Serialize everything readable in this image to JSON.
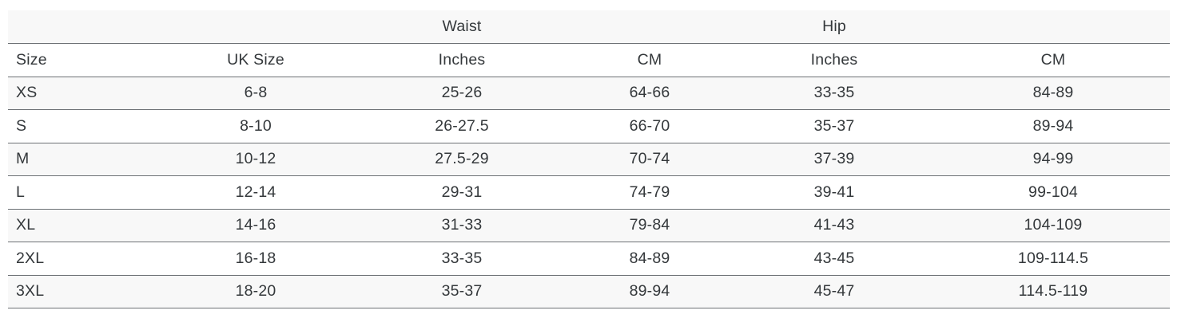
{
  "colors": {
    "stripe_row": "#f8f8f8",
    "row_border": "#6d7175",
    "text": "#34383b",
    "background": "#ffffff"
  },
  "table": {
    "group_header": {
      "waist": "Waist",
      "hip": "Hip"
    },
    "columns": [
      "Size",
      "UK Size",
      "Inches",
      "CM",
      "Inches",
      "CM"
    ],
    "rows": [
      {
        "size": "XS",
        "uk": "6-8",
        "waist_in": "25-26",
        "waist_cm": "64-66",
        "hip_in": "33-35",
        "hip_cm": "84-89"
      },
      {
        "size": "S",
        "uk": "8-10",
        "waist_in": "26-27.5",
        "waist_cm": "66-70",
        "hip_in": "35-37",
        "hip_cm": "89-94"
      },
      {
        "size": "M",
        "uk": "10-12",
        "waist_in": "27.5-29",
        "waist_cm": "70-74",
        "hip_in": "37-39",
        "hip_cm": "94-99"
      },
      {
        "size": "L",
        "uk": "12-14",
        "waist_in": "29-31",
        "waist_cm": "74-79",
        "hip_in": "39-41",
        "hip_cm": "99-104"
      },
      {
        "size": "XL",
        "uk": "14-16",
        "waist_in": "31-33",
        "waist_cm": "79-84",
        "hip_in": "41-43",
        "hip_cm": "104-109"
      },
      {
        "size": "2XL",
        "uk": "16-18",
        "waist_in": "33-35",
        "waist_cm": "84-89",
        "hip_in": "43-45",
        "hip_cm": "109-114.5"
      },
      {
        "size": "3XL",
        "uk": "18-20",
        "waist_in": "35-37",
        "waist_cm": "89-94",
        "hip_in": "45-47",
        "hip_cm": "114.5-119"
      }
    ]
  }
}
